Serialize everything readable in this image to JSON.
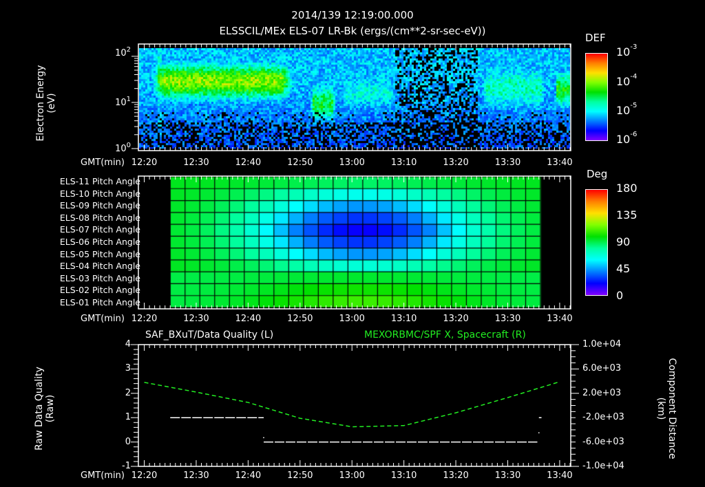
{
  "header": {
    "timestamp": "2014/139 12:19:00.000",
    "subtitle": "ELSSCIL/MEx ELS-07 LR-Bk  (ergs/(cm**2-sr-sec-eV))"
  },
  "time_axis": {
    "label": "GMT(min)",
    "ticks": [
      "12:20",
      "12:30",
      "12:40",
      "12:50",
      "13:00",
      "13:10",
      "13:20",
      "13:30",
      "13:40"
    ]
  },
  "panels": {
    "spectrogram": {
      "ylabel_line1": "Electron Energy",
      "ylabel_line2": "(eV)",
      "y_ticks": [
        {
          "base": "10",
          "exp": "2"
        },
        {
          "base": "10",
          "exp": "1"
        },
        {
          "base": "10",
          "exp": "0"
        }
      ],
      "colorbar": {
        "title": "DEF",
        "ticks": [
          {
            "base": "10",
            "exp": "-3"
          },
          {
            "base": "10",
            "exp": "-4"
          },
          {
            "base": "10",
            "exp": "-5"
          },
          {
            "base": "10",
            "exp": "-6"
          }
        ]
      }
    },
    "pitch_angle": {
      "rows": [
        "ELS-11 Pitch Angle",
        "ELS-10 Pitch Angle",
        "ELS-09 Pitch Angle",
        "ELS-08 Pitch Angle",
        "ELS-07 Pitch Angle",
        "ELS-06 Pitch Angle",
        "ELS-05 Pitch Angle",
        "ELS-04 Pitch Angle",
        "ELS-03 Pitch Angle",
        "ELS-02 Pitch Angle",
        "ELS-01 Pitch Angle"
      ],
      "colorbar": {
        "title": "Deg",
        "ticks": [
          "180",
          "135",
          "90",
          "45",
          "0"
        ]
      }
    },
    "line_plot": {
      "left_title": "SAF_BXuT/Data Quality (L)",
      "right_title": "MEXORBMC/SPF X, Spacecraft (R)",
      "right_title_color": "#22ee22",
      "left_ylabel_line1": "Raw Data Quality",
      "left_ylabel_line2": "(Raw)",
      "left_ticks": [
        "4",
        "3",
        "2",
        "1",
        "0",
        "-1"
      ],
      "right_ylabel_line1": "Component Distance",
      "right_ylabel_line2": "(km)",
      "right_ticks": [
        "1.0e+04",
        "6.0e+03",
        "2.0e+03",
        "-2.0e+03",
        "-6.0e+03",
        "-1.0e+04"
      ]
    }
  },
  "chart_data": [
    {
      "type": "heatmap",
      "title": "ELSSCIL/MEx ELS-07 LR-Bk (ergs/(cm**2-sr-sec-eV))",
      "xlabel": "GMT(min)",
      "ylabel": "Electron Energy (eV)",
      "x_range": [
        "12:19",
        "13:42"
      ],
      "y_range": [
        1,
        150
      ],
      "y_scale": "log",
      "colorbar": {
        "label": "DEF",
        "range": [
          1e-06,
          0.001
        ],
        "scale": "log"
      },
      "features": [
        {
          "time": "12:22-12:47",
          "energy_eV": "15-60",
          "level": "~1e-4 (green/yellow)"
        },
        {
          "time": "12:52-12:56",
          "energy_eV": "5-20",
          "level": "~3e-5 (green)"
        },
        {
          "time": "12:58-13:07",
          "energy_eV": "8-40",
          "level": "~1e-5 (cyan)"
        },
        {
          "time": "13:25-13:36",
          "energy_eV": "8-60",
          "level": "~2e-5 (cyan/green)"
        },
        {
          "time": "13:39-13:42",
          "energy_eV": "10-40",
          "level": "~5e-5 (green)"
        }
      ]
    },
    {
      "type": "heatmap",
      "title": "ELS Pitch Angles",
      "xlabel": "GMT(min)",
      "categories": [
        "ELS-01",
        "ELS-02",
        "ELS-03",
        "ELS-04",
        "ELS-05",
        "ELS-06",
        "ELS-07",
        "ELS-08",
        "ELS-09",
        "ELS-10",
        "ELS-11"
      ],
      "x_range": [
        "12:25",
        "13:36"
      ],
      "colorbar": {
        "label": "Deg",
        "range": [
          0,
          180
        ]
      },
      "description": "Pitch angles ~100-120 deg at edges; minimum ~15-25 deg for ELS-06 to ELS-08 around 13:00-13:15; ELS-01 peaks ~125 deg near 13:05"
    },
    {
      "type": "line",
      "title": "SAF_BXuT/Data Quality (L) ; MEXORBMC/SPF X, Spacecraft (R)",
      "xlabel": "GMT(min)",
      "ylabel": "Raw Data Quality (Raw)",
      "ylabel_right": "Component Distance (km)",
      "ylim": [
        -1,
        4
      ],
      "ylim_right": [
        -10000,
        10000
      ],
      "series": [
        {
          "name": "Data Quality",
          "axis": "left",
          "color": "#ffffff",
          "x": [
            "12:25",
            "12:43",
            "12:43",
            "13:36",
            "13:36"
          ],
          "y": [
            1,
            1,
            0,
            0,
            1
          ]
        },
        {
          "name": "SPF X",
          "axis": "right",
          "color": "#22ee22",
          "x": [
            "12:20",
            "12:30",
            "12:40",
            "12:50",
            "13:00",
            "13:10",
            "13:20",
            "13:30",
            "13:40"
          ],
          "y": [
            3800,
            2200,
            500,
            -2100,
            -3500,
            -3300,
            -1200,
            1300,
            3900
          ]
        }
      ]
    }
  ]
}
